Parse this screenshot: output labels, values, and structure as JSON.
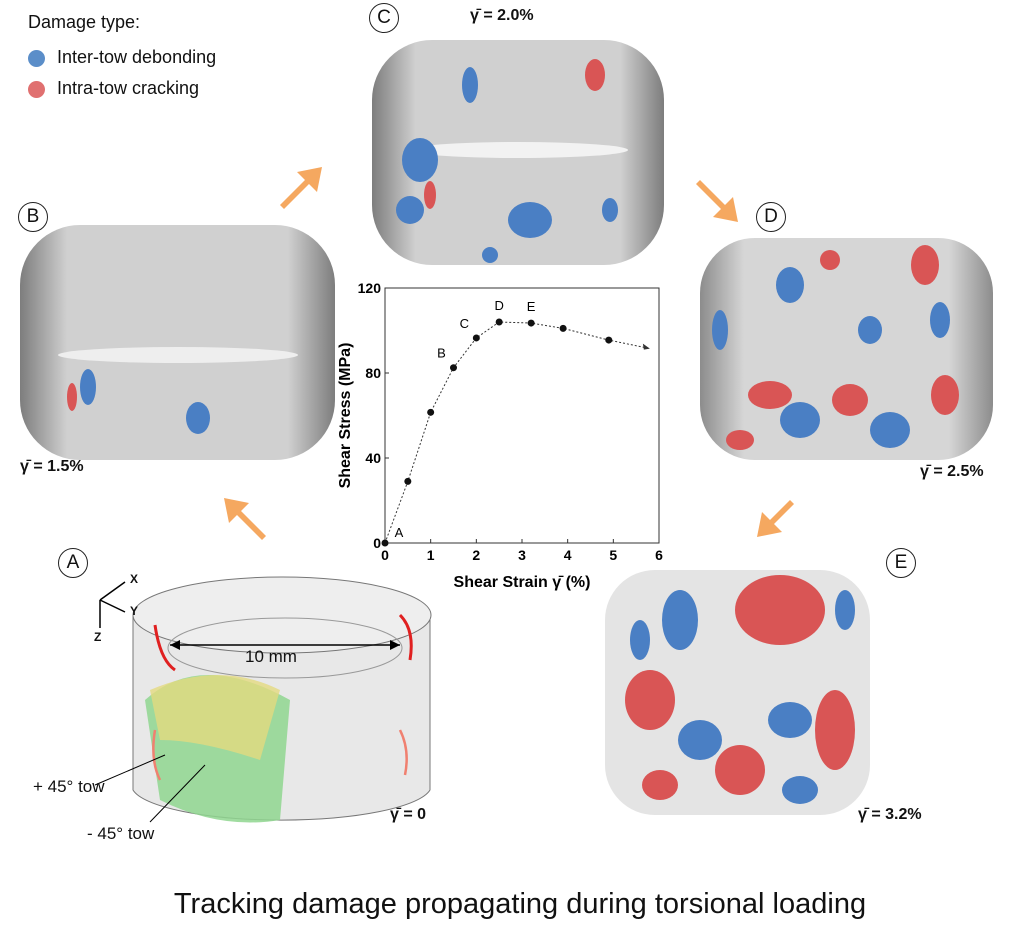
{
  "legend": {
    "title": "Damage type:",
    "items": [
      {
        "label": "Inter-tow debonding",
        "color": "#5b8ec9"
      },
      {
        "label": "Intra-tow cracking",
        "color": "#e07070"
      }
    ]
  },
  "panels": [
    {
      "id": "A",
      "strain_label": "γ̄ = 0"
    },
    {
      "id": "B",
      "strain_label": "γ̄ = 1.5%"
    },
    {
      "id": "C",
      "strain_label": "γ̄ = 2.0%"
    },
    {
      "id": "D",
      "strain_label": "γ̄ = 2.5%"
    },
    {
      "id": "E",
      "strain_label": "γ̄ = 3.2%"
    }
  ],
  "panel_a": {
    "diameter": "10 mm",
    "tow_plus": "+ 45° tow",
    "tow_minus": "- 45° tow",
    "axes": [
      "X",
      "Y",
      "Z"
    ]
  },
  "caption": "Tracking damage propagating during torsional loading",
  "colors": {
    "arrow": "#f5a860",
    "blue": "#4a7fc4",
    "red": "#d95555"
  },
  "chart_data": {
    "type": "line",
    "xlabel": "Shear Strain γ̄ (%)",
    "ylabel": "Shear Stress (MPa)",
    "xlim": [
      0,
      6
    ],
    "ylim": [
      0,
      120
    ],
    "xticks": [
      "0",
      "1",
      "2",
      "3",
      "4",
      "5",
      "6"
    ],
    "yticks": [
      "0",
      "40",
      "80",
      "120"
    ],
    "points": [
      {
        "x": 0,
        "y": 0,
        "label": "A"
      },
      {
        "x": 0.5,
        "y": 29
      },
      {
        "x": 1,
        "y": 61.5
      },
      {
        "x": 1.5,
        "y": 82.5,
        "label": "B"
      },
      {
        "x": 2,
        "y": 96.5,
        "label": "C"
      },
      {
        "x": 2.5,
        "y": 104,
        "label": "D"
      },
      {
        "x": 3.2,
        "y": 103.5,
        "label": "E"
      },
      {
        "x": 3.9,
        "y": 101
      },
      {
        "x": 4.9,
        "y": 95.5
      }
    ],
    "trend_end": {
      "x": 5.8,
      "y": 91.5
    }
  }
}
